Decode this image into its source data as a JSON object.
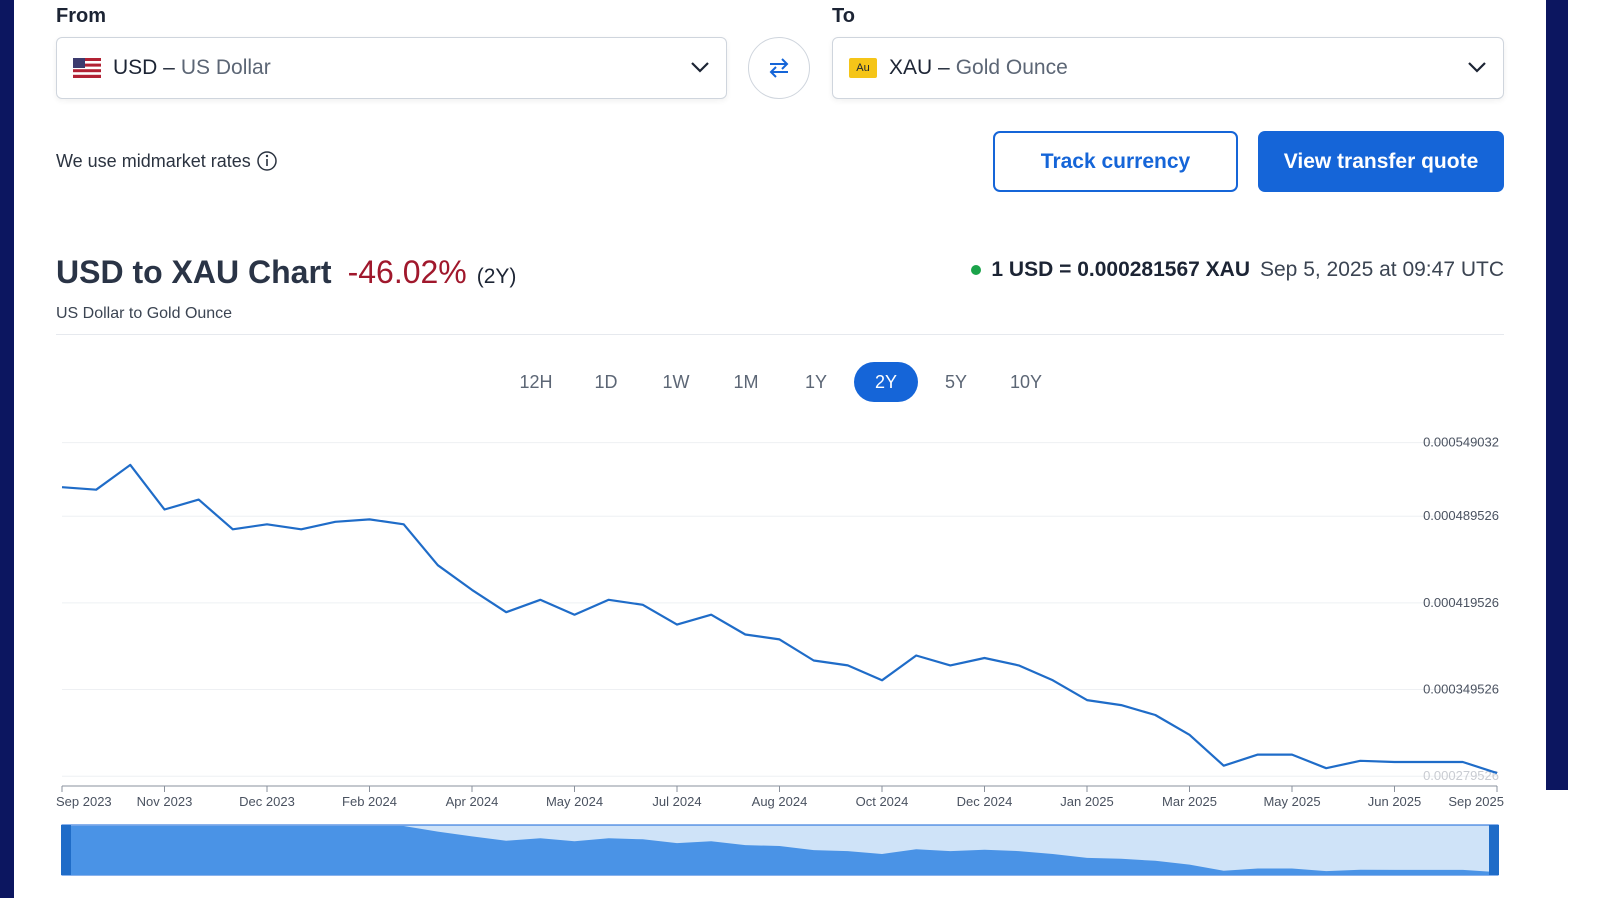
{
  "converter": {
    "from_label": "From",
    "from_code": "USD –",
    "from_name": "US Dollar",
    "to_label": "To",
    "to_badge": "Au",
    "to_code": "XAU –",
    "to_name": "Gold Ounce",
    "note": "We use midmarket rates",
    "track_button": "Track currency",
    "quote_button": "View transfer quote"
  },
  "header": {
    "title": "USD to XAU Chart",
    "change": "-46.02%",
    "period": "(2Y)",
    "subtitle": "US Dollar to Gold Ounce",
    "rate": "1 USD = 0.000281567 XAU",
    "timestamp": "Sep 5, 2025 at 09:47 UTC"
  },
  "ranges": {
    "items": [
      "12H",
      "1D",
      "1W",
      "1M",
      "1Y",
      "2Y",
      "5Y",
      "10Y"
    ],
    "active": "2Y"
  },
  "chart_data": {
    "type": "line",
    "color": "#1f6cc8",
    "categories": [
      "Sep 2023",
      null,
      null,
      "Nov 2023",
      null,
      null,
      "Dec 2023",
      null,
      null,
      "Feb 2024",
      null,
      null,
      "Apr 2024",
      null,
      null,
      "May 2024",
      null,
      null,
      "Jul 2024",
      null,
      null,
      "Aug 2024",
      null,
      null,
      "Oct 2024",
      null,
      null,
      "Dec 2024",
      null,
      null,
      "Jan 2025",
      null,
      null,
      "Mar 2025",
      null,
      null,
      "May 2025",
      null,
      null,
      "Jun 2025",
      null,
      null,
      "Sep 2025"
    ],
    "values": [
      0.000513,
      0.000511,
      0.000531,
      0.000495,
      0.000503,
      0.000479,
      0.000483,
      0.000479,
      0.000485,
      0.000487,
      0.000483,
      0.00045,
      0.00043,
      0.000412,
      0.000422,
      0.00041,
      0.000422,
      0.000418,
      0.000402,
      0.00041,
      0.000394,
      0.00039,
      0.000373,
      0.000369,
      0.000357,
      0.000377,
      0.000369,
      0.000375,
      0.000369,
      0.000357,
      0.000341,
      0.000337,
      0.000329,
      0.000313,
      0.000288,
      0.000297,
      0.000297,
      0.000286,
      0.000292,
      0.000291,
      0.000291,
      0.000291,
      0.000282
    ],
    "ylim": [
      0.00027,
      0.00056
    ],
    "yticks": [
      0.000279526,
      0.000349526,
      0.000419526,
      0.000489526,
      0.000549032
    ],
    "grid": true
  }
}
